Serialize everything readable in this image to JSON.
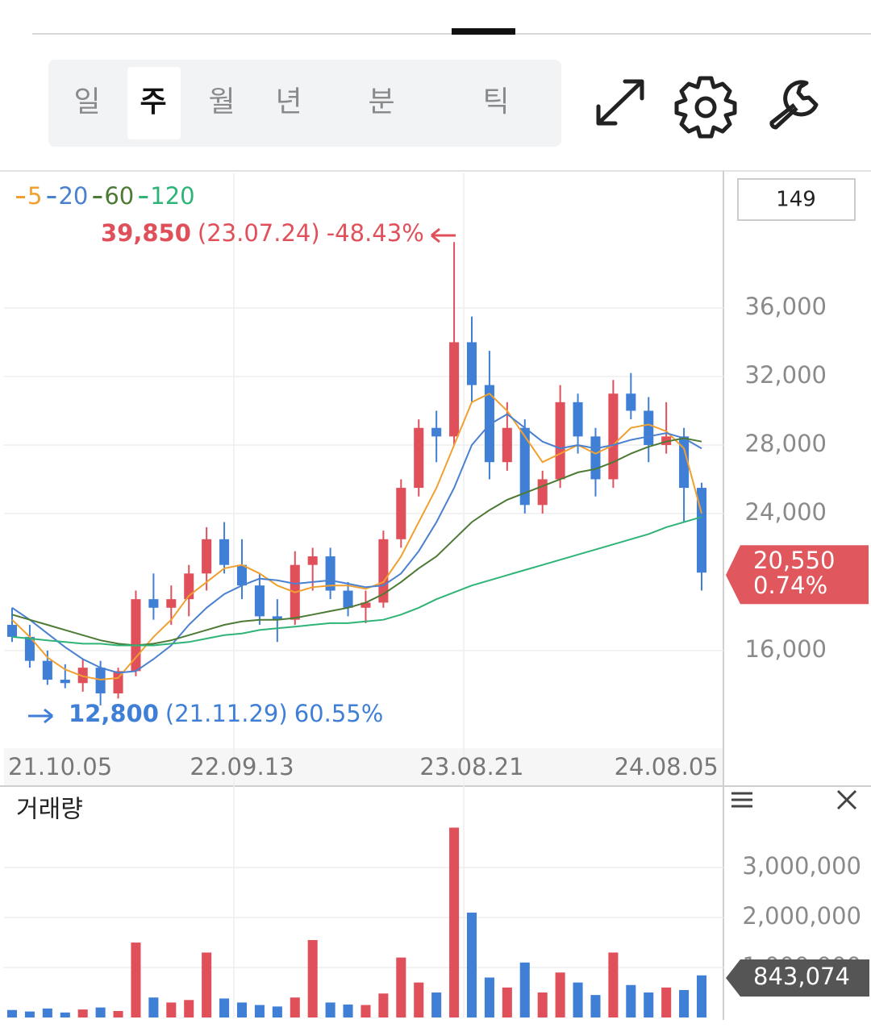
{
  "tabs": [
    "일",
    "주",
    "월",
    "년",
    "분",
    "틱"
  ],
  "selected_tab": 1,
  "count": "149",
  "volume_title": "거래량",
  "chart_data": [
    {
      "type": "candlestick",
      "categories": [
        "21.10.05",
        null,
        null,
        null,
        null,
        null,
        null,
        null,
        null,
        null,
        null,
        null,
        null,
        "22.09.13",
        null,
        null,
        null,
        null,
        null,
        null,
        null,
        null,
        null,
        null,
        null,
        null,
        "23.08.21",
        null,
        null,
        null,
        null,
        null,
        null,
        null,
        null,
        null,
        null,
        "24.08.05",
        null,
        null
      ],
      "open": [
        17500,
        16800,
        15400,
        14300,
        14100,
        15000,
        13500,
        14800,
        19000,
        18500,
        19000,
        20500,
        22500,
        21000,
        19800,
        18000,
        17800,
        21000,
        21500,
        19500,
        18500,
        18800,
        22500,
        25500,
        29000,
        28500,
        34000,
        31500,
        27000,
        29000,
        24500,
        26000,
        30500,
        28500,
        26000,
        31000,
        30000,
        28000,
        28500,
        25500
      ],
      "high": [
        18500,
        17500,
        16000,
        15200,
        15500,
        15400,
        15000,
        19500,
        20500,
        19800,
        21000,
        23200,
        23500,
        22500,
        20500,
        19000,
        21800,
        22000,
        22000,
        20000,
        19500,
        23000,
        26000,
        29500,
        30000,
        39850,
        35500,
        33500,
        30500,
        29500,
        26500,
        31500,
        31000,
        29000,
        31800,
        32200,
        30800,
        30500,
        29000,
        25800
      ],
      "low": [
        16500,
        15000,
        14000,
        13800,
        13600,
        12800,
        13200,
        14500,
        17800,
        17500,
        18000,
        19500,
        20500,
        19000,
        17500,
        16500,
        17500,
        19500,
        19000,
        18000,
        17600,
        18500,
        22000,
        25000,
        27000,
        28000,
        30500,
        26000,
        26500,
        24000,
        24000,
        25500,
        27500,
        25000,
        25500,
        29500,
        27000,
        27500,
        23500,
        19500
      ],
      "close": [
        16800,
        15400,
        14300,
        14100,
        15000,
        13500,
        14800,
        19000,
        18500,
        19000,
        20500,
        22500,
        21000,
        19800,
        18000,
        17800,
        21000,
        21500,
        19500,
        18500,
        18800,
        22500,
        25500,
        29000,
        28500,
        34000,
        31500,
        27000,
        29000,
        24500,
        26000,
        30500,
        28500,
        26000,
        31000,
        30000,
        28000,
        28500,
        25500,
        20550
      ],
      "up_color": "#e0505a",
      "down_color": "#3f7fd6",
      "series": [
        {
          "name": "5",
          "color": "#f0a030",
          "values": [
            17800,
            16800,
            15600,
            14900,
            14500,
            14300,
            14400,
            15600,
            16800,
            17800,
            19200,
            20000,
            20800,
            21000,
            20500,
            19800,
            19400,
            19700,
            19800,
            19800,
            19600,
            20000,
            21500,
            23500,
            25500,
            28000,
            30500,
            31000,
            30000,
            28500,
            27000,
            27500,
            28000,
            27500,
            28000,
            29000,
            29200,
            28800,
            27800,
            24000
          ]
        },
        {
          "name": "20",
          "color": "#4a80d0",
          "values": [
            18500,
            17800,
            17000,
            16200,
            15500,
            15000,
            14700,
            14800,
            15500,
            16300,
            17500,
            18500,
            19300,
            19800,
            20200,
            20100,
            19900,
            20000,
            20100,
            19900,
            19700,
            19800,
            20500,
            21800,
            23500,
            25500,
            28000,
            29200,
            29800,
            29000,
            28200,
            27800,
            28000,
            27800,
            28000,
            28300,
            28500,
            28700,
            28400,
            27800
          ]
        },
        {
          "name": "60",
          "color": "#4d7a34",
          "values": [
            18100,
            17800,
            17500,
            17200,
            16900,
            16600,
            16400,
            16300,
            16400,
            16600,
            16900,
            17200,
            17500,
            17700,
            17800,
            17800,
            17900,
            18100,
            18300,
            18500,
            18800,
            19300,
            20000,
            20800,
            21500,
            22500,
            23500,
            24200,
            24800,
            25200,
            25600,
            26000,
            26400,
            26600,
            27000,
            27500,
            27900,
            28200,
            28400,
            28200
          ]
        },
        {
          "name": "120",
          "color": "#2fb478",
          "values": [
            16800,
            16700,
            16600,
            16500,
            16400,
            16400,
            16300,
            16300,
            16300,
            16400,
            16500,
            16700,
            16900,
            17000,
            17200,
            17300,
            17400,
            17500,
            17600,
            17600,
            17700,
            17800,
            18100,
            18500,
            19000,
            19400,
            19800,
            20100,
            20400,
            20700,
            21000,
            21300,
            21600,
            21900,
            22200,
            22500,
            22800,
            23200,
            23500,
            23800
          ]
        }
      ],
      "ylim": [
        10300,
        43860
      ],
      "yticks": [
        {
          "value": 16000,
          "label": "16,000"
        },
        {
          "value": 24000,
          "label": "24,000"
        },
        {
          "value": 28000,
          "label": "28,000"
        },
        {
          "value": 32000,
          "label": "32,000"
        },
        {
          "value": 36000,
          "label": "36,000"
        }
      ],
      "grid": true,
      "high_annotation": {
        "value": 39850,
        "label": "39,850",
        "date": "(23.07.24)",
        "change": {
          "value": -48.43,
          "label": "-48.43%"
        }
      },
      "low_annotation": {
        "value": 12800,
        "label": "12,800",
        "date": "(21.11.29)",
        "change": {
          "value": 60.55,
          "label": "60.55%"
        }
      },
      "current": {
        "value": 20550,
        "label": "20,550",
        "change": {
          "value": 0.74,
          "label": "0.74%"
        },
        "color": "#e0585e"
      }
    },
    {
      "type": "bar",
      "values": [
        150000,
        120000,
        180000,
        100000,
        160000,
        200000,
        130000,
        1500000,
        400000,
        300000,
        350000,
        1300000,
        380000,
        300000,
        250000,
        220000,
        400000,
        1550000,
        300000,
        260000,
        250000,
        480000,
        1200000,
        700000,
        500000,
        3800000,
        2100000,
        800000,
        600000,
        1100000,
        500000,
        900000,
        700000,
        450000,
        1300000,
        650000,
        500000,
        600000,
        550000,
        843074
      ],
      "ylim": [
        0,
        4470000
      ],
      "yticks": [
        {
          "value": 1000000,
          "label": "1,000,000"
        },
        {
          "value": 2000000,
          "label": "2,000,000"
        },
        {
          "value": 3000000,
          "label": "3,000,000"
        }
      ],
      "grid": true,
      "current": {
        "value": 843074,
        "label": "843,074",
        "color": "#555555"
      }
    }
  ]
}
